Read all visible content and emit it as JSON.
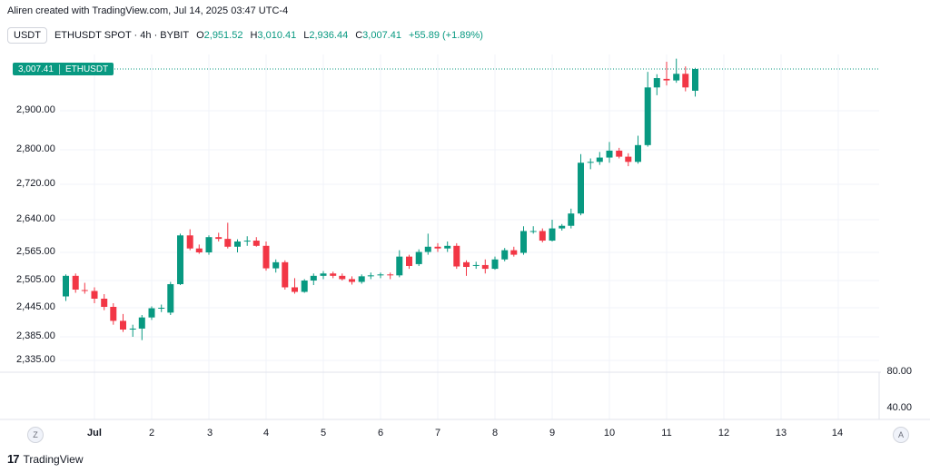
{
  "credit": "Aliren created with TradingView.com, Jul 14, 2025 03:47 UTC-4",
  "symbol_bar": {
    "quote_pill": "USDT",
    "title": "ETHUSDT SPOT · 4h · BYBIT",
    "o_key": "O",
    "o_val": "2,951.52",
    "h_key": "H",
    "h_val": "3,010.41",
    "l_key": "L",
    "l_val": "2,936.44",
    "c_key": "C",
    "c_val": "3,007.41",
    "change": "+55.89 (+1.89%)"
  },
  "last_price_tag": {
    "price": "3,007.41",
    "symbol": "ETHUSDT"
  },
  "controls": {
    "left": "Z",
    "right": "A"
  },
  "brand": {
    "name": "TradingView"
  },
  "colors": {
    "up": "#089981",
    "down": "#f23645",
    "grid": "#f0f3fa"
  },
  "chart_data": {
    "type": "candlestick",
    "symbol": "ETHUSDT",
    "interval": "4h",
    "exchange": "BYBIT",
    "y_axis_labels": [
      "2,900.00",
      "2,800.00",
      "2,720.00",
      "2,640.00",
      "2,565.00",
      "2,505.00",
      "2,445.00",
      "2,385.00",
      "2,335.00"
    ],
    "y_axis_values": [
      2900,
      2800,
      2720,
      2640,
      2565,
      2505,
      2445,
      2385,
      2335
    ],
    "x_axis_labels": [
      "Jul",
      "2",
      "3",
      "4",
      "5",
      "6",
      "7",
      "8",
      "9",
      "10",
      "11",
      "12",
      "13",
      "14"
    ],
    "x_axis_values": [
      1,
      2,
      3,
      4,
      5,
      6,
      7,
      8,
      9,
      10,
      11,
      12,
      13,
      14
    ],
    "indicator_labels": [
      "80.00",
      "40.00"
    ],
    "last_price": 3007.41,
    "candles": [
      {
        "t": 0.5,
        "o": 2470,
        "h": 2518,
        "l": 2460,
        "c": 2515
      },
      {
        "t": 0.67,
        "o": 2515,
        "h": 2520,
        "l": 2478,
        "c": 2485
      },
      {
        "t": 0.83,
        "o": 2484,
        "h": 2500,
        "l": 2476,
        "c": 2482
      },
      {
        "t": 1.0,
        "o": 2482,
        "h": 2490,
        "l": 2455,
        "c": 2465
      },
      {
        "t": 1.17,
        "o": 2465,
        "h": 2475,
        "l": 2440,
        "c": 2447
      },
      {
        "t": 1.33,
        "o": 2447,
        "h": 2455,
        "l": 2410,
        "c": 2418
      },
      {
        "t": 1.5,
        "o": 2418,
        "h": 2432,
        "l": 2395,
        "c": 2400
      },
      {
        "t": 1.67,
        "o": 2400,
        "h": 2410,
        "l": 2385,
        "c": 2402
      },
      {
        "t": 1.83,
        "o": 2402,
        "h": 2430,
        "l": 2378,
        "c": 2425
      },
      {
        "t": 2.0,
        "o": 2425,
        "h": 2448,
        "l": 2420,
        "c": 2444
      },
      {
        "t": 2.17,
        "o": 2444,
        "h": 2452,
        "l": 2436,
        "c": 2445
      },
      {
        "t": 2.33,
        "o": 2435,
        "h": 2502,
        "l": 2430,
        "c": 2497
      },
      {
        "t": 2.5,
        "o": 2497,
        "h": 2608,
        "l": 2495,
        "c": 2604
      },
      {
        "t": 2.67,
        "o": 2604,
        "h": 2618,
        "l": 2570,
        "c": 2574
      },
      {
        "t": 2.83,
        "o": 2574,
        "h": 2583,
        "l": 2562,
        "c": 2565
      },
      {
        "t": 3.0,
        "o": 2565,
        "h": 2604,
        "l": 2560,
        "c": 2600
      },
      {
        "t": 3.17,
        "o": 2600,
        "h": 2610,
        "l": 2590,
        "c": 2596
      },
      {
        "t": 3.33,
        "o": 2596,
        "h": 2633,
        "l": 2574,
        "c": 2578
      },
      {
        "t": 3.5,
        "o": 2578,
        "h": 2595,
        "l": 2565,
        "c": 2590
      },
      {
        "t": 3.67,
        "o": 2590,
        "h": 2602,
        "l": 2580,
        "c": 2592
      },
      {
        "t": 3.83,
        "o": 2592,
        "h": 2600,
        "l": 2578,
        "c": 2580
      },
      {
        "t": 4.0,
        "o": 2580,
        "h": 2590,
        "l": 2526,
        "c": 2531
      },
      {
        "t": 4.17,
        "o": 2531,
        "h": 2550,
        "l": 2522,
        "c": 2544
      },
      {
        "t": 4.33,
        "o": 2544,
        "h": 2548,
        "l": 2485,
        "c": 2490
      },
      {
        "t": 4.5,
        "o": 2490,
        "h": 2510,
        "l": 2476,
        "c": 2480
      },
      {
        "t": 4.67,
        "o": 2480,
        "h": 2508,
        "l": 2478,
        "c": 2505
      },
      {
        "t": 4.83,
        "o": 2505,
        "h": 2520,
        "l": 2495,
        "c": 2515
      },
      {
        "t": 5.0,
        "o": 2515,
        "h": 2525,
        "l": 2508,
        "c": 2520
      },
      {
        "t": 5.17,
        "o": 2520,
        "h": 2524,
        "l": 2510,
        "c": 2515
      },
      {
        "t": 5.33,
        "o": 2515,
        "h": 2520,
        "l": 2505,
        "c": 2508
      },
      {
        "t": 5.5,
        "o": 2508,
        "h": 2514,
        "l": 2496,
        "c": 2502
      },
      {
        "t": 5.67,
        "o": 2502,
        "h": 2518,
        "l": 2498,
        "c": 2514
      },
      {
        "t": 5.83,
        "o": 2514,
        "h": 2522,
        "l": 2508,
        "c": 2516
      },
      {
        "t": 6.0,
        "o": 2516,
        "h": 2522,
        "l": 2510,
        "c": 2518
      },
      {
        "t": 6.17,
        "o": 2518,
        "h": 2522,
        "l": 2508,
        "c": 2516
      },
      {
        "t": 6.33,
        "o": 2516,
        "h": 2570,
        "l": 2512,
        "c": 2556
      },
      {
        "t": 6.5,
        "o": 2556,
        "h": 2560,
        "l": 2530,
        "c": 2536
      },
      {
        "t": 6.67,
        "o": 2540,
        "h": 2572,
        "l": 2536,
        "c": 2566
      },
      {
        "t": 6.83,
        "o": 2566,
        "h": 2608,
        "l": 2560,
        "c": 2578
      },
      {
        "t": 7.0,
        "o": 2578,
        "h": 2586,
        "l": 2566,
        "c": 2574
      },
      {
        "t": 7.17,
        "o": 2574,
        "h": 2590,
        "l": 2566,
        "c": 2580
      },
      {
        "t": 7.33,
        "o": 2580,
        "h": 2586,
        "l": 2530,
        "c": 2535
      },
      {
        "t": 7.5,
        "o": 2544,
        "h": 2548,
        "l": 2515,
        "c": 2534
      },
      {
        "t": 7.67,
        "o": 2538,
        "h": 2545,
        "l": 2530,
        "c": 2538
      },
      {
        "t": 7.83,
        "o": 2538,
        "h": 2550,
        "l": 2520,
        "c": 2530
      },
      {
        "t": 8.0,
        "o": 2530,
        "h": 2556,
        "l": 2528,
        "c": 2550
      },
      {
        "t": 8.17,
        "o": 2550,
        "h": 2575,
        "l": 2546,
        "c": 2570
      },
      {
        "t": 8.33,
        "o": 2570,
        "h": 2578,
        "l": 2556,
        "c": 2560
      },
      {
        "t": 8.5,
        "o": 2564,
        "h": 2625,
        "l": 2560,
        "c": 2614
      },
      {
        "t": 8.67,
        "o": 2614,
        "h": 2625,
        "l": 2608,
        "c": 2614
      },
      {
        "t": 8.83,
        "o": 2614,
        "h": 2620,
        "l": 2588,
        "c": 2592
      },
      {
        "t": 9.0,
        "o": 2592,
        "h": 2640,
        "l": 2590,
        "c": 2620
      },
      {
        "t": 9.17,
        "o": 2620,
        "h": 2630,
        "l": 2615,
        "c": 2626
      },
      {
        "t": 9.33,
        "o": 2626,
        "h": 2665,
        "l": 2620,
        "c": 2654
      },
      {
        "t": 9.5,
        "o": 2654,
        "h": 2790,
        "l": 2650,
        "c": 2770
      },
      {
        "t": 9.67,
        "o": 2770,
        "h": 2780,
        "l": 2755,
        "c": 2772
      },
      {
        "t": 9.83,
        "o": 2772,
        "h": 2795,
        "l": 2765,
        "c": 2782
      },
      {
        "t": 10.0,
        "o": 2782,
        "h": 2820,
        "l": 2770,
        "c": 2798
      },
      {
        "t": 10.17,
        "o": 2798,
        "h": 2805,
        "l": 2780,
        "c": 2784
      },
      {
        "t": 10.33,
        "o": 2784,
        "h": 2792,
        "l": 2762,
        "c": 2772
      },
      {
        "t": 10.5,
        "o": 2772,
        "h": 2836,
        "l": 2768,
        "c": 2812
      },
      {
        "t": 10.67,
        "o": 2812,
        "h": 3000,
        "l": 2808,
        "c": 2960
      },
      {
        "t": 10.83,
        "o": 2960,
        "h": 2994,
        "l": 2940,
        "c": 2984
      },
      {
        "t": 11.0,
        "o": 2982,
        "h": 3026,
        "l": 2965,
        "c": 2978
      },
      {
        "t": 11.17,
        "o": 2978,
        "h": 3034,
        "l": 2972,
        "c": 2995
      },
      {
        "t": 11.33,
        "o": 2995,
        "h": 3014,
        "l": 2950,
        "c": 2960
      },
      {
        "t": 11.5,
        "o": 2951.52,
        "h": 3010.41,
        "l": 2936.44,
        "c": 3007.41
      }
    ]
  }
}
